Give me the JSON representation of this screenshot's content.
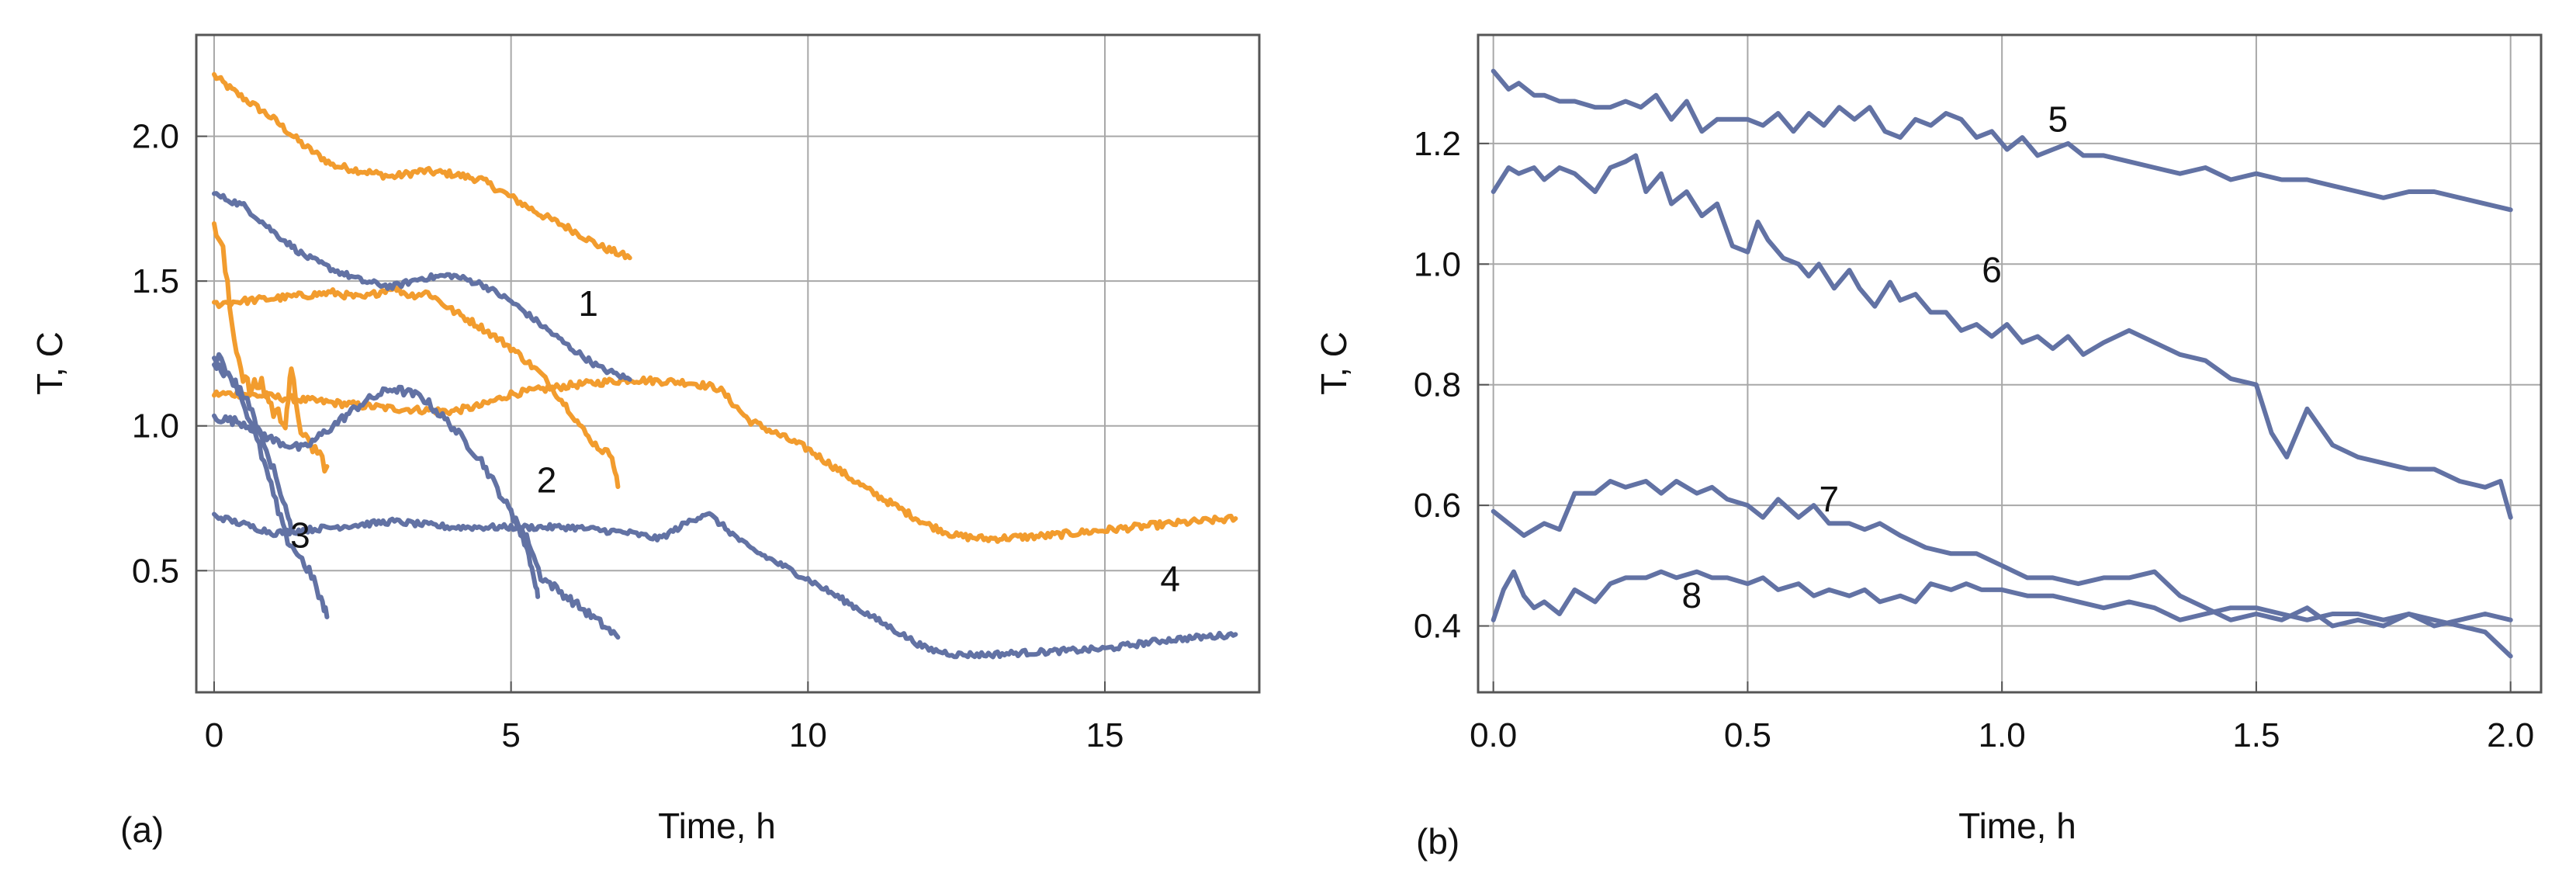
{
  "colors": {
    "blue": "#6272A4",
    "orange": "#F29C2E",
    "grid": "#a8a8a8"
  },
  "chart_data": [
    {
      "panel": "(a)",
      "type": "line",
      "xlabel": "Time, h",
      "ylabel": "T, C",
      "xlim": [
        -0.3,
        17.6
      ],
      "ylim": [
        0.08,
        2.35
      ],
      "xticks": [
        0,
        5,
        10,
        15
      ],
      "xtick_labels": [
        "0",
        "5",
        "10",
        "15"
      ],
      "yticks": [
        0.5,
        1.0,
        1.5,
        2.0
      ],
      "ytick_labels": [
        "0.5",
        "1.0",
        "1.5",
        "2.0"
      ],
      "grid": true,
      "annotations": [
        {
          "text": "1",
          "x": 6.3,
          "y": 1.38
        },
        {
          "text": "2",
          "x": 5.6,
          "y": 0.77
        },
        {
          "text": "3",
          "x": 1.45,
          "y": 0.58
        },
        {
          "text": "4",
          "x": 16.1,
          "y": 0.43
        }
      ],
      "series": [
        {
          "name": "orange-top",
          "color": "orange",
          "noise": 0.012,
          "x": [
            0,
            0.3,
            1.0,
            1.5,
            2.0,
            2.5,
            3.0,
            3.5,
            4.0,
            4.5,
            5.0,
            5.5,
            6.0,
            6.5,
            7.0
          ],
          "y": [
            2.21,
            2.16,
            2.06,
            1.97,
            1.9,
            1.88,
            1.86,
            1.88,
            1.87,
            1.85,
            1.79,
            1.73,
            1.68,
            1.62,
            1.58
          ]
        },
        {
          "name": "orange-long",
          "color": "orange",
          "noise": 0.012,
          "x": [
            0,
            0.5,
            1.0,
            2.0,
            3.0,
            4.0,
            4.5,
            5.0,
            6.0,
            7.0,
            8.0,
            8.5,
            9.0,
            10.0,
            11.0,
            12.0,
            12.5,
            13.0,
            14.0,
            15.0,
            16.0,
            17.2
          ],
          "y": [
            1.11,
            1.11,
            1.1,
            1.08,
            1.06,
            1.05,
            1.07,
            1.11,
            1.14,
            1.16,
            1.15,
            1.13,
            1.02,
            0.92,
            0.78,
            0.66,
            0.62,
            0.61,
            0.62,
            0.64,
            0.66,
            0.68
          ]
        },
        {
          "name": "orange-2",
          "color": "orange",
          "noise": 0.012,
          "x": [
            0,
            0.4,
            1.0,
            2.0,
            2.5,
            3.0,
            3.3,
            3.6,
            4.0,
            4.5,
            5.0,
            5.5,
            6.0,
            6.3,
            6.5,
            6.7,
            6.8
          ],
          "y": [
            1.42,
            1.43,
            1.44,
            1.46,
            1.44,
            1.48,
            1.45,
            1.46,
            1.4,
            1.34,
            1.27,
            1.18,
            1.05,
            0.96,
            0.92,
            0.9,
            0.79
          ]
        },
        {
          "name": "orange-short",
          "color": "orange",
          "noise": 0.03,
          "x": [
            0,
            0.15,
            0.3,
            0.45,
            0.6,
            0.8,
            1.0,
            1.2,
            1.3,
            1.5,
            1.7,
            1.9
          ],
          "y": [
            1.7,
            1.6,
            1.35,
            1.2,
            1.12,
            1.15,
            1.05,
            1.02,
            1.18,
            0.95,
            0.92,
            0.86
          ]
        },
        {
          "name": "blue-1",
          "color": "blue",
          "noise": 0.01,
          "x": [
            0,
            0.5,
            1.0,
            1.5,
            2.0,
            2.5,
            3.0,
            3.5,
            4.0,
            4.5,
            5.0,
            5.5,
            6.0,
            6.5,
            7.0
          ],
          "y": [
            1.8,
            1.76,
            1.67,
            1.59,
            1.54,
            1.5,
            1.48,
            1.51,
            1.52,
            1.49,
            1.43,
            1.35,
            1.27,
            1.2,
            1.16
          ]
        },
        {
          "name": "blue-dip",
          "color": "blue",
          "noise": 0.015,
          "x": [
            0,
            0.5,
            1.0,
            1.5,
            2.0,
            2.5,
            3.0,
            3.5,
            4.0,
            4.5,
            5.0,
            5.3,
            5.5,
            6.0,
            6.5,
            6.8
          ],
          "y": [
            1.03,
            1.01,
            0.95,
            0.92,
            1.0,
            1.08,
            1.13,
            1.1,
            1.0,
            0.88,
            0.7,
            0.6,
            0.48,
            0.4,
            0.32,
            0.27
          ]
        },
        {
          "name": "blue-4",
          "color": "blue",
          "noise": 0.01,
          "x": [
            0,
            0.5,
            1.0,
            2.0,
            3.0,
            4.0,
            5.0,
            6.0,
            7.0,
            7.5,
            8.0,
            8.3,
            9.0,
            10.0,
            11.0,
            12.0,
            12.5,
            13.0,
            14.0,
            15.0,
            16.0,
            17.2
          ],
          "y": [
            0.69,
            0.66,
            0.63,
            0.65,
            0.67,
            0.65,
            0.65,
            0.65,
            0.63,
            0.61,
            0.67,
            0.7,
            0.58,
            0.47,
            0.35,
            0.23,
            0.21,
            0.21,
            0.22,
            0.23,
            0.26,
            0.28
          ]
        },
        {
          "name": "blue-3a",
          "color": "blue",
          "noise": 0.02,
          "x": [
            0,
            0.2,
            0.4,
            0.6,
            0.8,
            1.0,
            1.2,
            1.4,
            1.6,
            1.8,
            1.9
          ],
          "y": [
            1.25,
            1.2,
            1.13,
            1.02,
            0.9,
            0.76,
            0.62,
            0.56,
            0.5,
            0.4,
            0.34
          ]
        },
        {
          "name": "blue-3b",
          "color": "blue",
          "noise": 0.015,
          "x": [
            0,
            0.2,
            0.4,
            0.6,
            0.8,
            1.0,
            1.2,
            1.3
          ],
          "y": [
            1.21,
            1.18,
            1.14,
            1.07,
            0.95,
            0.85,
            0.72,
            0.64
          ]
        },
        {
          "name": "blue-3c",
          "color": "blue",
          "noise": 0.015,
          "x": [
            5.0,
            5.2,
            5.3,
            5.4,
            5.45
          ],
          "y": [
            0.7,
            0.62,
            0.55,
            0.47,
            0.41
          ]
        }
      ]
    },
    {
      "panel": "(b)",
      "type": "line",
      "xlabel": "Time, h",
      "ylabel": "T, C",
      "xlim": [
        -0.03,
        2.06
      ],
      "ylim": [
        0.29,
        1.38
      ],
      "xticks": [
        0.0,
        0.5,
        1.0,
        1.5,
        2.0
      ],
      "xtick_labels": [
        "0.0",
        "0.5",
        "1.0",
        "1.5",
        "2.0"
      ],
      "yticks": [
        0.4,
        0.6,
        0.8,
        1.0,
        1.2
      ],
      "ytick_labels": [
        "0.4",
        "0.6",
        "0.8",
        "1.0",
        "1.2"
      ],
      "grid": true,
      "annotations": [
        {
          "text": "5",
          "x": 1.11,
          "y": 1.22
        },
        {
          "text": "6",
          "x": 0.98,
          "y": 0.97
        },
        {
          "text": "7",
          "x": 0.66,
          "y": 0.59
        },
        {
          "text": "8",
          "x": 0.39,
          "y": 0.43
        }
      ],
      "series": [
        {
          "name": "5",
          "color": "blue",
          "noise": 0,
          "x": [
            0.0,
            0.03,
            0.05,
            0.08,
            0.1,
            0.13,
            0.16,
            0.2,
            0.23,
            0.26,
            0.29,
            0.32,
            0.35,
            0.38,
            0.41,
            0.44,
            0.47,
            0.5,
            0.53,
            0.56,
            0.59,
            0.62,
            0.65,
            0.68,
            0.71,
            0.74,
            0.77,
            0.8,
            0.83,
            0.86,
            0.89,
            0.92,
            0.95,
            0.98,
            1.01,
            1.04,
            1.07,
            1.1,
            1.13,
            1.16,
            1.2,
            1.25,
            1.3,
            1.35,
            1.4,
            1.45,
            1.5,
            1.55,
            1.6,
            1.65,
            1.7,
            1.75,
            1.8,
            1.85,
            1.9,
            1.95,
            2.0
          ],
          "y": [
            1.32,
            1.29,
            1.3,
            1.28,
            1.28,
            1.27,
            1.27,
            1.26,
            1.26,
            1.27,
            1.26,
            1.28,
            1.24,
            1.27,
            1.22,
            1.24,
            1.24,
            1.24,
            1.23,
            1.25,
            1.22,
            1.25,
            1.23,
            1.26,
            1.24,
            1.26,
            1.22,
            1.21,
            1.24,
            1.23,
            1.25,
            1.24,
            1.21,
            1.22,
            1.19,
            1.21,
            1.18,
            1.19,
            1.2,
            1.18,
            1.18,
            1.17,
            1.16,
            1.15,
            1.16,
            1.14,
            1.15,
            1.14,
            1.14,
            1.13,
            1.12,
            1.11,
            1.12,
            1.12,
            1.11,
            1.1,
            1.09
          ]
        },
        {
          "name": "6",
          "color": "blue",
          "noise": 0,
          "x": [
            0.0,
            0.03,
            0.05,
            0.08,
            0.1,
            0.13,
            0.16,
            0.2,
            0.23,
            0.26,
            0.28,
            0.3,
            0.33,
            0.35,
            0.38,
            0.41,
            0.44,
            0.47,
            0.5,
            0.52,
            0.54,
            0.57,
            0.6,
            0.62,
            0.64,
            0.67,
            0.7,
            0.72,
            0.75,
            0.78,
            0.8,
            0.83,
            0.86,
            0.89,
            0.92,
            0.95,
            0.98,
            1.01,
            1.04,
            1.07,
            1.1,
            1.13,
            1.16,
            1.2,
            1.25,
            1.3,
            1.35,
            1.4,
            1.45,
            1.5,
            1.53,
            1.56,
            1.6,
            1.65,
            1.7,
            1.75,
            1.8,
            1.85,
            1.9,
            1.95,
            1.98,
            2.0
          ],
          "y": [
            1.12,
            1.16,
            1.15,
            1.16,
            1.14,
            1.16,
            1.15,
            1.12,
            1.16,
            1.17,
            1.18,
            1.12,
            1.15,
            1.1,
            1.12,
            1.08,
            1.1,
            1.03,
            1.02,
            1.07,
            1.04,
            1.01,
            1.0,
            0.98,
            1.0,
            0.96,
            0.99,
            0.96,
            0.93,
            0.97,
            0.94,
            0.95,
            0.92,
            0.92,
            0.89,
            0.9,
            0.88,
            0.9,
            0.87,
            0.88,
            0.86,
            0.88,
            0.85,
            0.87,
            0.89,
            0.87,
            0.85,
            0.84,
            0.81,
            0.8,
            0.72,
            0.68,
            0.76,
            0.7,
            0.68,
            0.67,
            0.66,
            0.66,
            0.64,
            0.63,
            0.64,
            0.58
          ]
        },
        {
          "name": "7",
          "color": "blue",
          "noise": 0,
          "x": [
            0.0,
            0.03,
            0.06,
            0.1,
            0.13,
            0.16,
            0.2,
            0.23,
            0.26,
            0.3,
            0.33,
            0.36,
            0.4,
            0.43,
            0.46,
            0.5,
            0.53,
            0.56,
            0.6,
            0.63,
            0.66,
            0.7,
            0.73,
            0.76,
            0.8,
            0.85,
            0.9,
            0.95,
            1.0,
            1.05,
            1.1,
            1.15,
            1.2,
            1.25,
            1.3,
            1.35,
            1.4,
            1.45,
            1.5,
            1.55,
            1.6,
            1.65,
            1.7,
            1.75,
            1.8,
            1.85,
            1.9,
            1.95,
            2.0
          ],
          "y": [
            0.59,
            0.57,
            0.55,
            0.57,
            0.56,
            0.62,
            0.62,
            0.64,
            0.63,
            0.64,
            0.62,
            0.64,
            0.62,
            0.63,
            0.61,
            0.6,
            0.58,
            0.61,
            0.58,
            0.6,
            0.57,
            0.57,
            0.56,
            0.57,
            0.55,
            0.53,
            0.52,
            0.52,
            0.5,
            0.48,
            0.48,
            0.47,
            0.48,
            0.48,
            0.49,
            0.45,
            0.43,
            0.41,
            0.42,
            0.41,
            0.43,
            0.4,
            0.41,
            0.4,
            0.42,
            0.41,
            0.4,
            0.39,
            0.35
          ]
        },
        {
          "name": "8",
          "color": "blue",
          "noise": 0,
          "x": [
            0.0,
            0.02,
            0.04,
            0.06,
            0.08,
            0.1,
            0.13,
            0.16,
            0.2,
            0.23,
            0.26,
            0.3,
            0.33,
            0.36,
            0.4,
            0.43,
            0.46,
            0.5,
            0.53,
            0.56,
            0.6,
            0.63,
            0.66,
            0.7,
            0.73,
            0.76,
            0.8,
            0.83,
            0.86,
            0.9,
            0.93,
            0.96,
            1.0,
            1.05,
            1.1,
            1.15,
            1.2,
            1.25,
            1.3,
            1.35,
            1.4,
            1.45,
            1.5,
            1.55,
            1.6,
            1.65,
            1.7,
            1.75,
            1.8,
            1.85,
            1.9,
            1.95,
            2.0
          ],
          "y": [
            0.41,
            0.46,
            0.49,
            0.45,
            0.43,
            0.44,
            0.42,
            0.46,
            0.44,
            0.47,
            0.48,
            0.48,
            0.49,
            0.48,
            0.49,
            0.48,
            0.48,
            0.47,
            0.48,
            0.46,
            0.47,
            0.45,
            0.46,
            0.45,
            0.46,
            0.44,
            0.45,
            0.44,
            0.47,
            0.46,
            0.47,
            0.46,
            0.46,
            0.45,
            0.45,
            0.44,
            0.43,
            0.44,
            0.43,
            0.41,
            0.42,
            0.43,
            0.43,
            0.42,
            0.41,
            0.42,
            0.42,
            0.41,
            0.42,
            0.4,
            0.41,
            0.42,
            0.41
          ]
        }
      ]
    }
  ]
}
